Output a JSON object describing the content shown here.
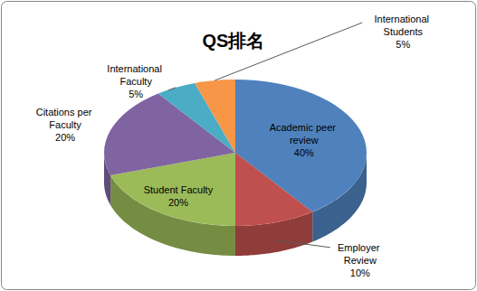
{
  "chart_data": {
    "type": "pie",
    "title": "QS排名",
    "categories": [
      "Academic peer review",
      "Employer Review",
      "Student Faculty",
      "Citations per Faculty",
      "International Faculty",
      "International Students"
    ],
    "values": [
      40,
      10,
      20,
      20,
      5,
      5
    ],
    "value_labels": [
      "40%",
      "10%",
      "20%",
      "20%",
      "5%",
      "5%"
    ],
    "colors": [
      "#4f81bd",
      "#c0504d",
      "#9bbb59",
      "#8064a2",
      "#4bacc6",
      "#f79646"
    ],
    "data_labels": true
  }
}
